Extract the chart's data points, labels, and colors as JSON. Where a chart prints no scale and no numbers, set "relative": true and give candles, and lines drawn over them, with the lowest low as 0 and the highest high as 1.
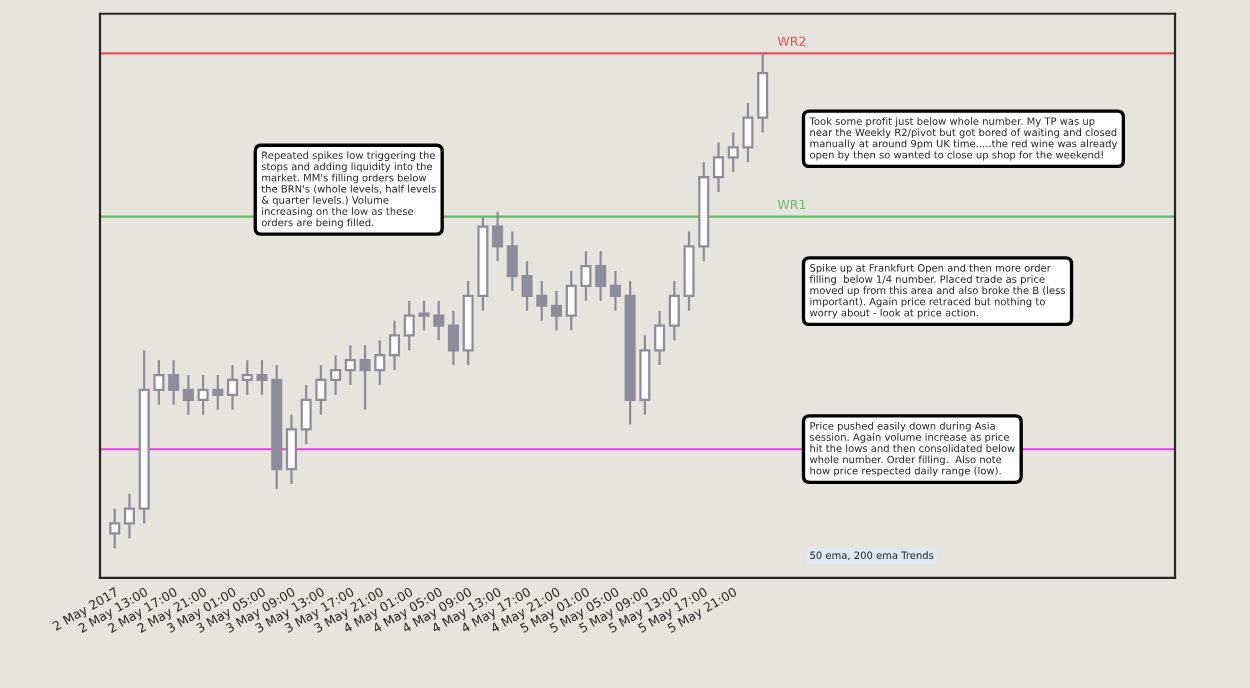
{
  "chart_data": {
    "type": "candlestick",
    "relative": true,
    "color": "#8c8c9c",
    "categories": [
      "2 May 2017",
      null,
      "2 May 13:00",
      null,
      "2 May 17:00",
      null,
      "2 May 21:00",
      null,
      "3 May 01:00",
      null,
      "3 May 05:00",
      null,
      "3 May 09:00",
      null,
      "3 May 13:00",
      null,
      "3 May 17:00",
      null,
      "3 May 21:00",
      null,
      "4 May 01:00",
      null,
      "4 May 05:00",
      null,
      "4 May 09:00",
      null,
      "4 May 13:00",
      null,
      "4 May 17:00",
      null,
      "4 May 21:00",
      null,
      "5 May 01:00",
      null,
      "5 May 05:00",
      null,
      "5 May 09:00",
      null,
      "5 May 13:00",
      null,
      "5 May 17:00",
      null,
      "5 May 21:00",
      null,
      null
    ],
    "ohlc": [
      [
        0.03,
        0.08,
        0.0,
        0.05
      ],
      [
        0.05,
        0.11,
        0.02,
        0.08
      ],
      [
        0.08,
        0.4,
        0.05,
        0.32
      ],
      [
        0.32,
        0.38,
        0.29,
        0.35
      ],
      [
        0.35,
        0.38,
        0.29,
        0.32
      ],
      [
        0.32,
        0.35,
        0.27,
        0.3
      ],
      [
        0.3,
        0.35,
        0.27,
        0.32
      ],
      [
        0.32,
        0.35,
        0.28,
        0.31
      ],
      [
        0.31,
        0.37,
        0.28,
        0.34
      ],
      [
        0.34,
        0.38,
        0.31,
        0.35
      ],
      [
        0.35,
        0.38,
        0.31,
        0.34
      ],
      [
        0.34,
        0.37,
        0.12,
        0.16
      ],
      [
        0.16,
        0.27,
        0.13,
        0.24
      ],
      [
        0.24,
        0.33,
        0.21,
        0.3
      ],
      [
        0.3,
        0.37,
        0.27,
        0.34
      ],
      [
        0.34,
        0.39,
        0.31,
        0.36
      ],
      [
        0.36,
        0.41,
        0.33,
        0.38
      ],
      [
        0.38,
        0.41,
        0.28,
        0.36
      ],
      [
        0.36,
        0.42,
        0.33,
        0.39
      ],
      [
        0.39,
        0.46,
        0.36,
        0.43
      ],
      [
        0.43,
        0.5,
        0.4,
        0.47
      ],
      [
        0.47,
        0.5,
        0.44,
        0.47
      ],
      [
        0.47,
        0.5,
        0.42,
        0.45
      ],
      [
        0.45,
        0.48,
        0.37,
        0.4
      ],
      [
        0.4,
        0.54,
        0.37,
        0.51
      ],
      [
        0.51,
        0.67,
        0.48,
        0.65
      ],
      [
        0.65,
        0.68,
        0.58,
        0.61
      ],
      [
        0.61,
        0.64,
        0.52,
        0.55
      ],
      [
        0.55,
        0.58,
        0.48,
        0.51
      ],
      [
        0.51,
        0.54,
        0.46,
        0.49
      ],
      [
        0.49,
        0.52,
        0.44,
        0.47
      ],
      [
        0.47,
        0.56,
        0.44,
        0.53
      ],
      [
        0.53,
        0.6,
        0.5,
        0.57
      ],
      [
        0.57,
        0.6,
        0.5,
        0.53
      ],
      [
        0.53,
        0.56,
        0.48,
        0.51
      ],
      [
        0.51,
        0.54,
        0.25,
        0.3
      ],
      [
        0.3,
        0.43,
        0.27,
        0.4
      ],
      [
        0.4,
        0.48,
        0.37,
        0.45
      ],
      [
        0.45,
        0.54,
        0.42,
        0.51
      ],
      [
        0.51,
        0.64,
        0.48,
        0.61
      ],
      [
        0.61,
        0.78,
        0.58,
        0.75
      ],
      [
        0.75,
        0.82,
        0.72,
        0.79
      ],
      [
        0.79,
        0.84,
        0.76,
        0.81
      ],
      [
        0.81,
        0.9,
        0.78,
        0.87
      ],
      [
        0.87,
        1.0,
        0.84,
        0.96
      ]
    ],
    "ref_lines": [
      {
        "axis": "y",
        "value": 1.0,
        "label": "WR2",
        "color": "#e05050"
      },
      {
        "axis": "y",
        "value": 0.67,
        "label": "WR1",
        "color": "#60c060"
      },
      {
        "axis": "y",
        "value": 0.2,
        "color": "#e040e0"
      }
    ],
    "annotations": [
      "Repeated spikes low triggering the\nstops and adding liquidity into the\nmarket. MM's filling orders below\nthe BRN's (whole levels, half levels\n& quarter levels.) Volume\nincreasing on the low as these\norders are being filled.",
      "Took some profit just below whole number. My TP was up\nnear the Weekly R2/pivot but got bored of waiting and closed\nmanually at around 9pm UK time.....the red wine was already\nopen by then so wanted to close up shop for the weekend!",
      "Spike up at Frankfurt Open and then more order\nfilling  below 1/4 number. Placed trade as price\nmoved up from this area and also broke the B (less\nimportant). Again price retraced but nothing to\nworry about - look at price action.",
      "Price pushed easily down during Asia\nsession. Again volume increase as price\nhit the lows and then consolidated below\nwhole number. Order filling.  Also note\nhow price respected daily range (low).",
      "50 ema, 200 ema Trends"
    ],
    "grid": false
  }
}
